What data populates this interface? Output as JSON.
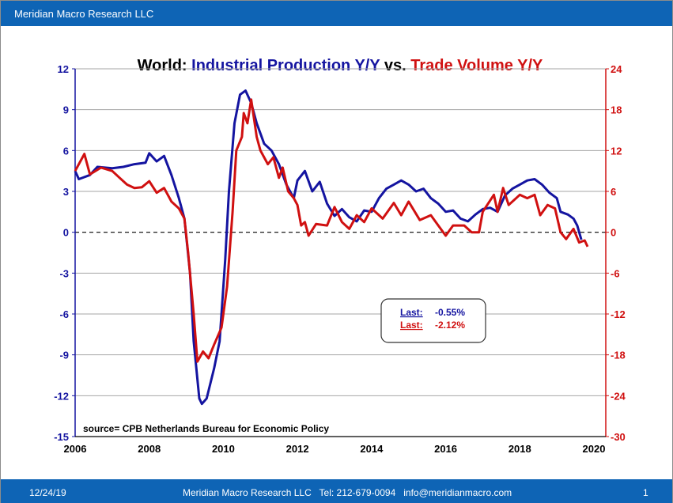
{
  "header": {
    "title": "Meridian Macro Research LLC"
  },
  "footer": {
    "date": "12/24/19",
    "contact": "Meridian Macro Research LLC   Tel: 212-679-0094   info@meridianmacro.com",
    "page": "1"
  },
  "colors": {
    "ip": "#1414a0",
    "trade": "#d01010",
    "bar": "#0e64b5"
  },
  "chart_data": {
    "type": "line",
    "title_parts": [
      {
        "text": "World: ",
        "color": "#000000"
      },
      {
        "text": "Industrial Production Y/Y",
        "color": "#1414a0"
      },
      {
        "text": " vs. ",
        "color": "#000000"
      },
      {
        "text": "Trade Volume Y/Y",
        "color": "#d01010"
      }
    ],
    "xlim": [
      2006,
      2020
    ],
    "x_ticks": [
      2006,
      2008,
      2010,
      2012,
      2014,
      2016,
      2018,
      2020
    ],
    "ylim_left": [
      -15,
      12
    ],
    "y_ticks_left": [
      12,
      9,
      6,
      3,
      0,
      -3,
      -6,
      -9,
      -12,
      -15
    ],
    "ylim_right": [
      -30,
      24
    ],
    "y_ticks_right": [
      24,
      18,
      12,
      6,
      0,
      -6,
      -12,
      -18,
      -24,
      -30
    ],
    "grid": true,
    "zero_line": "dashed",
    "annotation": "source= CPB Netherlands Bureau for Economic Policy",
    "legend_box": [
      {
        "label": "Last:",
        "value": "-0.55%",
        "color": "#1414a0"
      },
      {
        "label": "Last:",
        "value": "-2.12%",
        "color": "#d01010"
      }
    ],
    "series": [
      {
        "axis": "left",
        "color": "#1414a0",
        "points": [
          [
            2006.0,
            4.5
          ],
          [
            2006.1,
            3.9
          ],
          [
            2006.4,
            4.2
          ],
          [
            2006.6,
            4.8
          ],
          [
            2007.0,
            4.7
          ],
          [
            2007.3,
            4.8
          ],
          [
            2007.6,
            5.0
          ],
          [
            2007.9,
            5.1
          ],
          [
            2008.0,
            5.8
          ],
          [
            2008.2,
            5.2
          ],
          [
            2008.4,
            5.6
          ],
          [
            2008.6,
            4.2
          ],
          [
            2008.8,
            2.5
          ],
          [
            2008.95,
            1.0
          ],
          [
            2009.1,
            -3
          ],
          [
            2009.2,
            -8
          ],
          [
            2009.35,
            -12.2
          ],
          [
            2009.42,
            -12.6
          ],
          [
            2009.55,
            -12.2
          ],
          [
            2009.75,
            -10
          ],
          [
            2009.9,
            -8
          ],
          [
            2010.05,
            -2
          ],
          [
            2010.15,
            3
          ],
          [
            2010.3,
            8
          ],
          [
            2010.45,
            10.1
          ],
          [
            2010.6,
            10.4
          ],
          [
            2010.75,
            9.5
          ],
          [
            2010.9,
            8.0
          ],
          [
            2011.1,
            6.5
          ],
          [
            2011.3,
            6.0
          ],
          [
            2011.5,
            5.0
          ],
          [
            2011.7,
            3.5
          ],
          [
            2011.9,
            2.5
          ],
          [
            2012.0,
            3.8
          ],
          [
            2012.2,
            4.5
          ],
          [
            2012.4,
            3.0
          ],
          [
            2012.6,
            3.7
          ],
          [
            2012.8,
            2.1
          ],
          [
            2013.0,
            1.2
          ],
          [
            2013.2,
            1.7
          ],
          [
            2013.4,
            1.1
          ],
          [
            2013.6,
            0.8
          ],
          [
            2013.8,
            1.6
          ],
          [
            2014.0,
            1.5
          ],
          [
            2014.2,
            2.5
          ],
          [
            2014.4,
            3.2
          ],
          [
            2014.6,
            3.5
          ],
          [
            2014.8,
            3.8
          ],
          [
            2015.0,
            3.5
          ],
          [
            2015.2,
            3.0
          ],
          [
            2015.4,
            3.2
          ],
          [
            2015.6,
            2.5
          ],
          [
            2015.8,
            2.1
          ],
          [
            2016.0,
            1.5
          ],
          [
            2016.2,
            1.6
          ],
          [
            2016.4,
            1.0
          ],
          [
            2016.6,
            0.8
          ],
          [
            2016.8,
            1.3
          ],
          [
            2017.0,
            1.7
          ],
          [
            2017.2,
            1.8
          ],
          [
            2017.4,
            1.5
          ],
          [
            2017.6,
            2.7
          ],
          [
            2017.8,
            3.2
          ],
          [
            2018.0,
            3.5
          ],
          [
            2018.2,
            3.8
          ],
          [
            2018.4,
            3.9
          ],
          [
            2018.6,
            3.5
          ],
          [
            2018.8,
            2.9
          ],
          [
            2019.0,
            2.5
          ],
          [
            2019.1,
            1.5
          ],
          [
            2019.3,
            1.3
          ],
          [
            2019.45,
            1.0
          ],
          [
            2019.55,
            0.5
          ],
          [
            2019.66,
            -0.55
          ]
        ]
      },
      {
        "axis": "right",
        "color": "#d01010",
        "points": [
          [
            2006.0,
            9
          ],
          [
            2006.25,
            11.5
          ],
          [
            2006.4,
            8.5
          ],
          [
            2006.7,
            9.5
          ],
          [
            2007.0,
            9.0
          ],
          [
            2007.2,
            8.0
          ],
          [
            2007.4,
            7.0
          ],
          [
            2007.6,
            6.5
          ],
          [
            2007.8,
            6.6
          ],
          [
            2008.0,
            7.5
          ],
          [
            2008.2,
            5.8
          ],
          [
            2008.4,
            6.5
          ],
          [
            2008.6,
            4.5
          ],
          [
            2008.8,
            3.5
          ],
          [
            2008.95,
            2
          ],
          [
            2009.05,
            -3
          ],
          [
            2009.2,
            -12
          ],
          [
            2009.3,
            -19
          ],
          [
            2009.45,
            -17.5
          ],
          [
            2009.6,
            -18.5
          ],
          [
            2009.75,
            -16.5
          ],
          [
            2009.95,
            -14
          ],
          [
            2010.1,
            -8
          ],
          [
            2010.25,
            3
          ],
          [
            2010.35,
            12
          ],
          [
            2010.5,
            14
          ],
          [
            2010.55,
            17.5
          ],
          [
            2010.65,
            16
          ],
          [
            2010.75,
            19.5
          ],
          [
            2010.9,
            14
          ],
          [
            2011.0,
            12
          ],
          [
            2011.2,
            10
          ],
          [
            2011.35,
            11
          ],
          [
            2011.5,
            8
          ],
          [
            2011.6,
            9.5
          ],
          [
            2011.75,
            6
          ],
          [
            2011.9,
            5
          ],
          [
            2012.0,
            4
          ],
          [
            2012.1,
            1
          ],
          [
            2012.2,
            1.5
          ],
          [
            2012.3,
            -0.5
          ],
          [
            2012.5,
            1.2
          ],
          [
            2012.8,
            1
          ],
          [
            2013.0,
            3.7
          ],
          [
            2013.2,
            1.5
          ],
          [
            2013.4,
            0.5
          ],
          [
            2013.6,
            2.5
          ],
          [
            2013.8,
            1.5
          ],
          [
            2014.0,
            3.5
          ],
          [
            2014.3,
            2
          ],
          [
            2014.6,
            4.3
          ],
          [
            2014.8,
            2.5
          ],
          [
            2015.0,
            4.5
          ],
          [
            2015.3,
            1.8
          ],
          [
            2015.6,
            2.5
          ],
          [
            2015.8,
            1
          ],
          [
            2016.0,
            -0.5
          ],
          [
            2016.2,
            1
          ],
          [
            2016.5,
            1
          ],
          [
            2016.7,
            0
          ],
          [
            2016.9,
            0
          ],
          [
            2017.0,
            3
          ],
          [
            2017.3,
            5.5
          ],
          [
            2017.4,
            3
          ],
          [
            2017.55,
            6.5
          ],
          [
            2017.7,
            4
          ],
          [
            2018.0,
            5.5
          ],
          [
            2018.2,
            5
          ],
          [
            2018.4,
            5.5
          ],
          [
            2018.55,
            2.5
          ],
          [
            2018.75,
            4
          ],
          [
            2018.95,
            3.5
          ],
          [
            2019.1,
            0
          ],
          [
            2019.25,
            -1
          ],
          [
            2019.45,
            0.5
          ],
          [
            2019.6,
            -1.5
          ],
          [
            2019.75,
            -1.2
          ],
          [
            2019.83,
            -2.12
          ]
        ]
      }
    ]
  }
}
